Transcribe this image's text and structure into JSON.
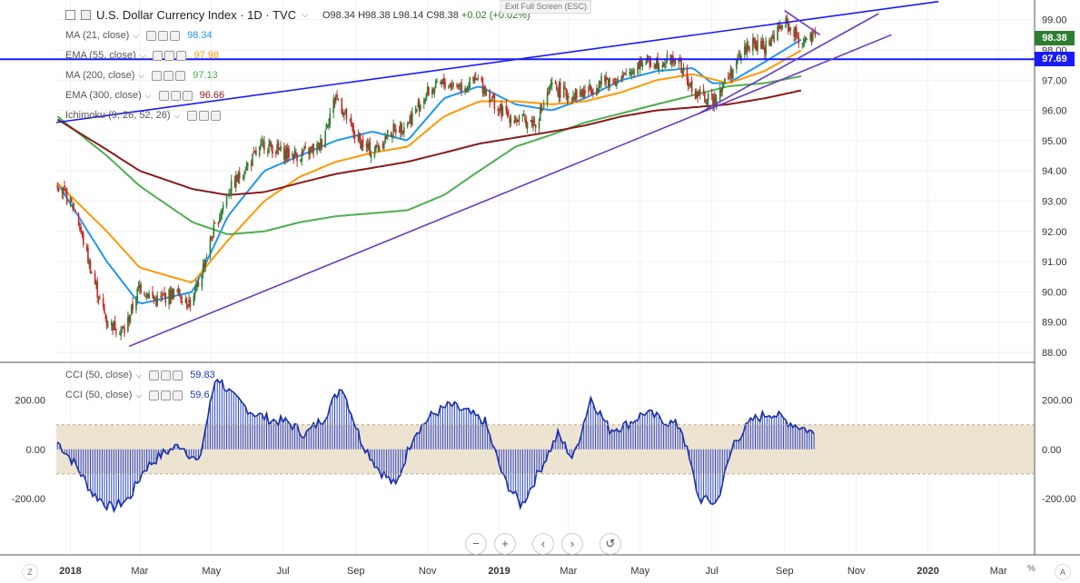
{
  "header": {
    "title": "U.S. Dollar Currency Index · 1D · TVC",
    "ohlc": {
      "open": "O98.34",
      "high": "H98.38",
      "low": "L98.14",
      "close": "C98.38"
    },
    "change": "+0.02 (+0.02%)",
    "fullscreen_hint": "Exit Full Screen (ESC)"
  },
  "legend_price": [
    {
      "label": "MA (21, close)",
      "value": "98.34",
      "color": "#2196f3"
    },
    {
      "label": "EMA (55, close)",
      "value": "97.98",
      "color": "#ff9800"
    },
    {
      "label": "MA (200, close)",
      "value": "97.13",
      "color": "#4caf50"
    },
    {
      "label": "EMA (300, close)",
      "value": "96.66",
      "color": "#8b1a1a"
    },
    {
      "label": "Ichimoku (9, 26, 52, 26)",
      "value": "",
      "color": "#888888"
    }
  ],
  "legend_cci": [
    {
      "label": "CCI (50, close)",
      "value": "59.83",
      "color": "#1a3bbf"
    },
    {
      "label": "CCI (50, close)",
      "value": "59.6",
      "color": "#1a3bbf"
    }
  ],
  "price_tags": {
    "last": {
      "text": "98.38",
      "color": "#2e7d32"
    },
    "line": {
      "text": "97.69",
      "color": "#1a1aff"
    }
  },
  "toolbar": {
    "zoom_out": "−",
    "zoom_in": "+",
    "back": "‹",
    "forward": "›",
    "reset": "↺"
  },
  "footer": {
    "left_btn": "Z",
    "pct": "%",
    "auto_btn": "A"
  },
  "chart_data": {
    "type": "line",
    "title": "U.S. Dollar Currency Index",
    "x_tick_labels": [
      "2018",
      "Mar",
      "May",
      "Jul",
      "Sep",
      "Nov",
      "2019",
      "Mar",
      "May",
      "Jul",
      "Sep",
      "Nov",
      "2020",
      "Mar"
    ],
    "x_tick_dates": [
      "2018-01-01",
      "2018-03-01",
      "2018-05-01",
      "2018-07-01",
      "2018-09-01",
      "2018-11-01",
      "2019-01-01",
      "2019-03-01",
      "2019-05-01",
      "2019-07-01",
      "2019-09-01",
      "2019-11-01",
      "2020-01-01",
      "2020-03-01"
    ],
    "x_range": [
      "2017-12-20",
      "2020-03-31"
    ],
    "price_axis": {
      "ylim": [
        87.7,
        99.5
      ],
      "ticks": [
        "88.00",
        "89.00",
        "90.00",
        "91.00",
        "92.00",
        "93.00",
        "94.00",
        "95.00",
        "96.00",
        "97.00",
        "98.00",
        "99.00"
      ]
    },
    "price_close": [
      [
        "2017-12-21",
        93.6
      ],
      [
        "2018-01-05",
        92.7
      ],
      [
        "2018-01-20",
        90.5
      ],
      [
        "2018-02-01",
        89.0
      ],
      [
        "2018-02-16",
        88.7
      ],
      [
        "2018-03-01",
        90.2
      ],
      [
        "2018-03-15",
        89.7
      ],
      [
        "2018-04-01",
        90.0
      ],
      [
        "2018-04-15",
        89.6
      ],
      [
        "2018-05-01",
        91.8
      ],
      [
        "2018-05-15",
        93.3
      ],
      [
        "2018-06-01",
        94.2
      ],
      [
        "2018-06-15",
        94.9
      ],
      [
        "2018-07-01",
        94.6
      ],
      [
        "2018-07-15",
        94.5
      ],
      [
        "2018-08-01",
        94.8
      ],
      [
        "2018-08-15",
        96.5
      ],
      [
        "2018-09-01",
        95.1
      ],
      [
        "2018-09-15",
        94.6
      ],
      [
        "2018-10-01",
        95.3
      ],
      [
        "2018-10-15",
        95.6
      ],
      [
        "2018-11-01",
        96.6
      ],
      [
        "2018-11-15",
        96.9
      ],
      [
        "2018-12-01",
        96.8
      ],
      [
        "2018-12-15",
        97.0
      ],
      [
        "2019-01-01",
        96.0
      ],
      [
        "2019-01-15",
        95.7
      ],
      [
        "2019-02-01",
        95.6
      ],
      [
        "2019-02-15",
        96.8
      ],
      [
        "2019-03-01",
        96.5
      ],
      [
        "2019-03-15",
        96.6
      ],
      [
        "2019-04-01",
        97.0
      ],
      [
        "2019-04-15",
        97.0
      ],
      [
        "2019-05-01",
        97.6
      ],
      [
        "2019-05-15",
        97.6
      ],
      [
        "2019-06-01",
        97.7
      ],
      [
        "2019-06-15",
        96.6
      ],
      [
        "2019-07-01",
        96.3
      ],
      [
        "2019-07-15",
        97.1
      ],
      [
        "2019-08-01",
        98.2
      ],
      [
        "2019-08-15",
        98.1
      ],
      [
        "2019-09-01",
        98.9
      ],
      [
        "2019-09-15",
        98.3
      ],
      [
        "2019-09-27",
        98.38
      ]
    ],
    "series": [
      {
        "name": "MA (21, close)",
        "color": "#2196f3",
        "points": [
          [
            "2017-12-21",
            93.6
          ],
          [
            "2018-02-01",
            91.0
          ],
          [
            "2018-03-01",
            89.6
          ],
          [
            "2018-04-15",
            90.0
          ],
          [
            "2018-05-15",
            92.5
          ],
          [
            "2018-06-15",
            94.0
          ],
          [
            "2018-07-15",
            94.5
          ],
          [
            "2018-08-15",
            95.0
          ],
          [
            "2018-09-15",
            95.3
          ],
          [
            "2018-10-15",
            95.0
          ],
          [
            "2018-11-15",
            96.4
          ],
          [
            "2018-12-15",
            96.8
          ],
          [
            "2019-01-15",
            96.2
          ],
          [
            "2019-02-15",
            96.0
          ],
          [
            "2019-03-15",
            96.4
          ],
          [
            "2019-04-15",
            97.0
          ],
          [
            "2019-05-15",
            97.3
          ],
          [
            "2019-06-15",
            97.4
          ],
          [
            "2019-07-01",
            96.9
          ],
          [
            "2019-07-15",
            96.9
          ],
          [
            "2019-08-15",
            97.6
          ],
          [
            "2019-09-15",
            98.34
          ]
        ]
      },
      {
        "name": "EMA (55, close)",
        "color": "#ff9800",
        "points": [
          [
            "2017-12-21",
            93.6
          ],
          [
            "2018-02-01",
            92.0
          ],
          [
            "2018-03-01",
            90.8
          ],
          [
            "2018-04-15",
            90.3
          ],
          [
            "2018-05-15",
            91.7
          ],
          [
            "2018-06-15",
            93.0
          ],
          [
            "2018-07-15",
            93.8
          ],
          [
            "2018-08-15",
            94.3
          ],
          [
            "2018-09-15",
            94.6
          ],
          [
            "2018-10-15",
            94.8
          ],
          [
            "2018-11-15",
            95.8
          ],
          [
            "2018-12-15",
            96.3
          ],
          [
            "2019-01-15",
            96.3
          ],
          [
            "2019-02-15",
            96.2
          ],
          [
            "2019-03-15",
            96.3
          ],
          [
            "2019-04-15",
            96.6
          ],
          [
            "2019-05-15",
            97.0
          ],
          [
            "2019-06-15",
            97.2
          ],
          [
            "2019-07-15",
            96.9
          ],
          [
            "2019-08-15",
            97.3
          ],
          [
            "2019-09-15",
            97.98
          ]
        ]
      },
      {
        "name": "MA (200, close)",
        "color": "#4caf50",
        "points": [
          [
            "2017-12-21",
            95.8
          ],
          [
            "2018-02-01",
            94.5
          ],
          [
            "2018-03-01",
            93.5
          ],
          [
            "2018-04-15",
            92.3
          ],
          [
            "2018-05-15",
            91.9
          ],
          [
            "2018-06-15",
            92.0
          ],
          [
            "2018-07-15",
            92.3
          ],
          [
            "2018-08-15",
            92.5
          ],
          [
            "2018-09-15",
            92.6
          ],
          [
            "2018-10-15",
            92.7
          ],
          [
            "2018-11-15",
            93.2
          ],
          [
            "2018-12-15",
            94.0
          ],
          [
            "2019-01-15",
            94.8
          ],
          [
            "2019-02-15",
            95.2
          ],
          [
            "2019-03-15",
            95.6
          ],
          [
            "2019-04-15",
            95.9
          ],
          [
            "2019-05-15",
            96.2
          ],
          [
            "2019-06-15",
            96.5
          ],
          [
            "2019-07-15",
            96.8
          ],
          [
            "2019-08-15",
            96.9
          ],
          [
            "2019-09-15",
            97.13
          ]
        ]
      },
      {
        "name": "EMA (300, close)",
        "color": "#8b1a1a",
        "points": [
          [
            "2017-12-21",
            95.7
          ],
          [
            "2018-02-01",
            94.7
          ],
          [
            "2018-03-01",
            94.0
          ],
          [
            "2018-04-15",
            93.4
          ],
          [
            "2018-05-15",
            93.2
          ],
          [
            "2018-06-15",
            93.3
          ],
          [
            "2018-07-15",
            93.6
          ],
          [
            "2018-08-15",
            93.9
          ],
          [
            "2018-09-15",
            94.1
          ],
          [
            "2018-10-15",
            94.3
          ],
          [
            "2018-11-15",
            94.6
          ],
          [
            "2018-12-15",
            94.9
          ],
          [
            "2019-01-15",
            95.1
          ],
          [
            "2019-02-15",
            95.3
          ],
          [
            "2019-03-15",
            95.5
          ],
          [
            "2019-04-15",
            95.8
          ],
          [
            "2019-05-15",
            96.0
          ],
          [
            "2019-06-15",
            96.1
          ],
          [
            "2019-07-15",
            96.2
          ],
          [
            "2019-08-15",
            96.4
          ],
          [
            "2019-09-15",
            96.66
          ]
        ]
      }
    ],
    "horizontal_lines": [
      {
        "value": 97.69,
        "color": "#1a1aff"
      }
    ],
    "trendlines": [
      {
        "color": "#1a1aff",
        "from": [
          "2017-12-20",
          95.6
        ],
        "to": [
          "2020-01-10",
          99.6
        ]
      },
      {
        "color": "#6a3cbf",
        "from": [
          "2018-02-20",
          88.2
        ],
        "to": [
          "2019-12-01",
          98.5
        ]
      },
      {
        "color": "#6a3cbf",
        "from": [
          "2019-06-20",
          95.9
        ],
        "to": [
          "2019-11-20",
          99.2
        ]
      },
      {
        "color": "#6a3cbf",
        "from": [
          "2019-09-01",
          99.3
        ],
        "to": [
          "2019-10-01",
          98.5
        ]
      }
    ],
    "cci_axis": {
      "ylim": [
        -300,
        350
      ],
      "ticks": [
        "200.00",
        "0.00",
        "-200.00"
      ],
      "band": [
        -100,
        100
      ]
    },
    "cci": [
      [
        "2017-12-21",
        30
      ],
      [
        "2018-01-05",
        -60
      ],
      [
        "2018-01-20",
        -180
      ],
      [
        "2018-02-05",
        -240
      ],
      [
        "2018-02-20",
        -200
      ],
      [
        "2018-03-05",
        -80
      ],
      [
        "2018-03-20",
        -20
      ],
      [
        "2018-04-05",
        20
      ],
      [
        "2018-04-20",
        -60
      ],
      [
        "2018-05-05",
        300
      ],
      [
        "2018-05-20",
        210
      ],
      [
        "2018-06-05",
        150
      ],
      [
        "2018-06-20",
        120
      ],
      [
        "2018-07-05",
        110
      ],
      [
        "2018-07-20",
        60
      ],
      [
        "2018-08-05",
        130
      ],
      [
        "2018-08-20",
        260
      ],
      [
        "2018-09-05",
        40
      ],
      [
        "2018-09-20",
        -80
      ],
      [
        "2018-10-05",
        -150
      ],
      [
        "2018-10-20",
        60
      ],
      [
        "2018-11-05",
        140
      ],
      [
        "2018-11-20",
        180
      ],
      [
        "2018-12-05",
        150
      ],
      [
        "2018-12-20",
        110
      ],
      [
        "2019-01-05",
        -120
      ],
      [
        "2019-01-20",
        -230
      ],
      [
        "2019-02-05",
        -80
      ],
      [
        "2019-02-20",
        60
      ],
      [
        "2019-03-05",
        -40
      ],
      [
        "2019-03-20",
        210
      ],
      [
        "2019-04-05",
        80
      ],
      [
        "2019-04-20",
        100
      ],
      [
        "2019-05-05",
        150
      ],
      [
        "2019-05-20",
        120
      ],
      [
        "2019-06-05",
        90
      ],
      [
        "2019-06-20",
        -200
      ],
      [
        "2019-07-05",
        -220
      ],
      [
        "2019-07-20",
        30
      ],
      [
        "2019-08-05",
        120
      ],
      [
        "2019-08-20",
        150
      ],
      [
        "2019-09-05",
        110
      ],
      [
        "2019-09-20",
        80
      ],
      [
        "2019-09-27",
        59.83
      ]
    ]
  }
}
